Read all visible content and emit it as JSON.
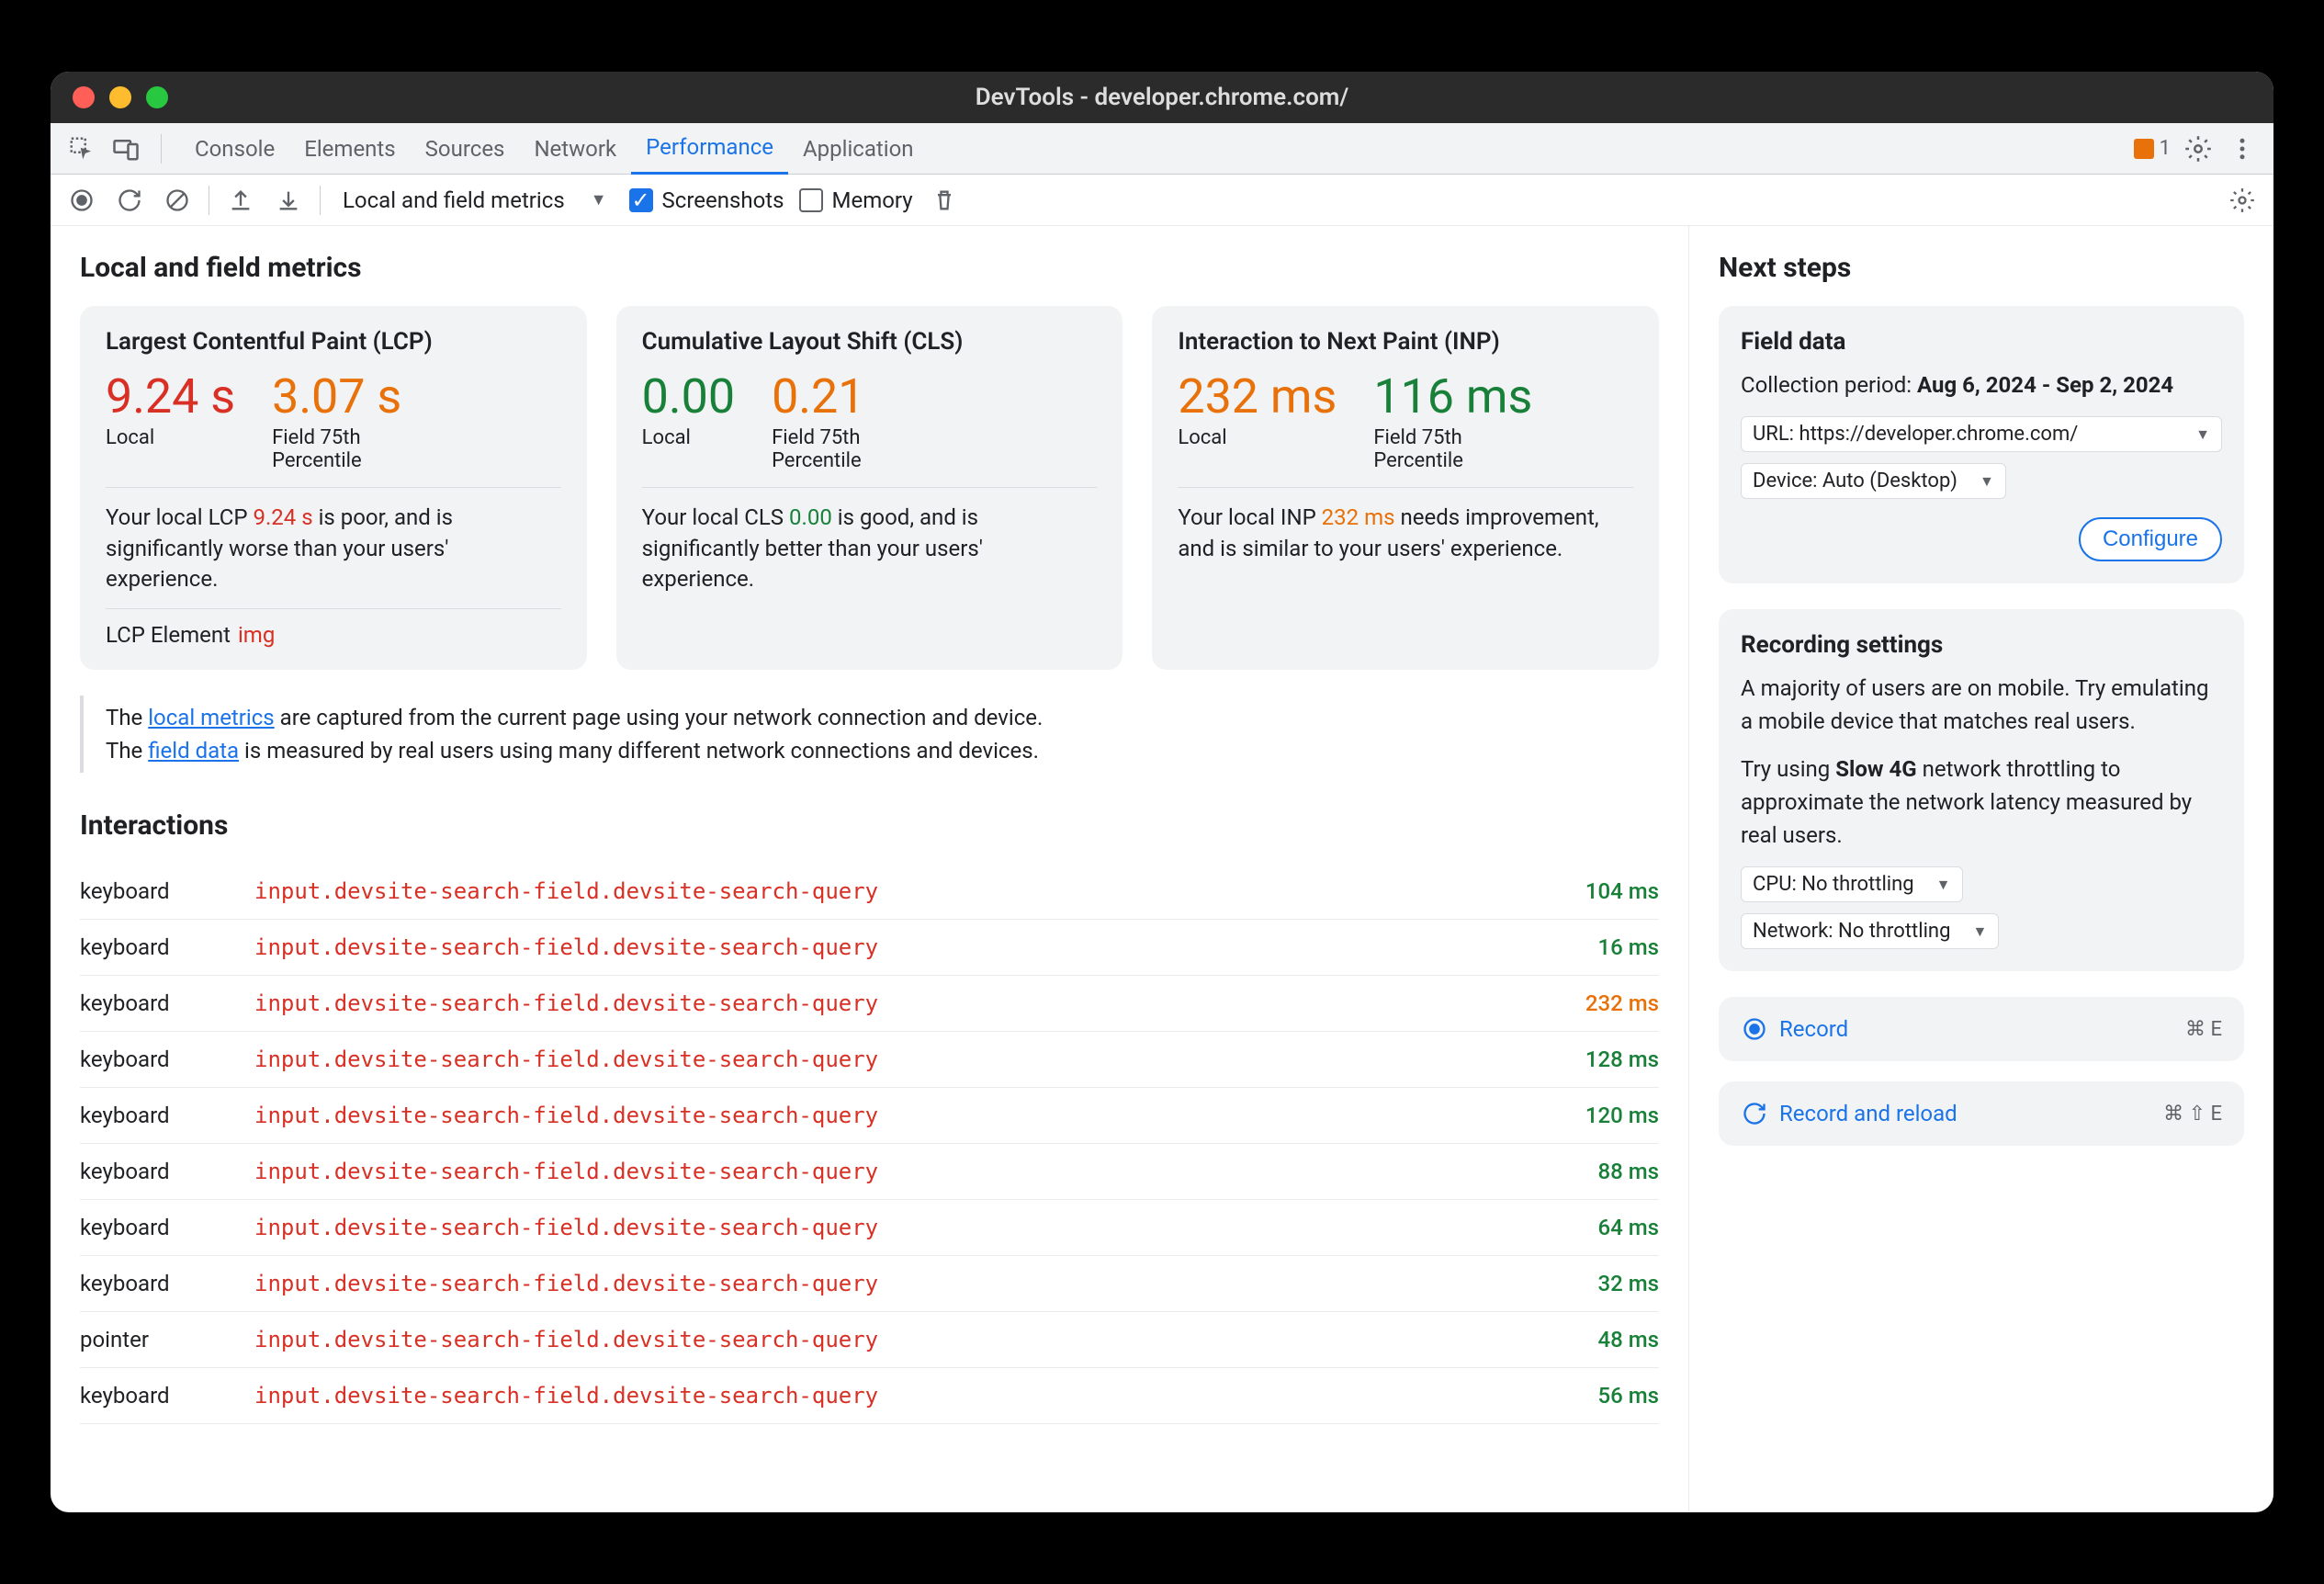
{
  "window": {
    "title": "DevTools - developer.chrome.com/"
  },
  "tabs": [
    "Console",
    "Elements",
    "Sources",
    "Network",
    "Performance",
    "Application"
  ],
  "active_tab_index": 4,
  "issues_count": "1",
  "toolbar": {
    "dropdown": "Local and field metrics",
    "screenshots_label": "Screenshots",
    "screenshots_checked": true,
    "memory_label": "Memory",
    "memory_checked": false
  },
  "main": {
    "heading": "Local and field metrics",
    "cards": [
      {
        "title": "Largest Contentful Paint (LCP)",
        "local_value": "9.24 s",
        "local_color": "#d93025",
        "field_value": "3.07 s",
        "field_color": "#e8710a",
        "local_label": "Local",
        "field_label_line1": "Field 75th",
        "field_label_line2": "Percentile",
        "msg_pre": "Your local LCP ",
        "msg_val": "9.24 s",
        "msg_val_color": "#d93025",
        "msg_post": " is poor, and is significantly worse than your users' experience.",
        "lcp_element_label": "LCP Element",
        "lcp_element_tag": "img"
      },
      {
        "title": "Cumulative Layout Shift (CLS)",
        "local_value": "0.00",
        "local_color": "#188038",
        "field_value": "0.21",
        "field_color": "#e8710a",
        "local_label": "Local",
        "field_label_line1": "Field 75th",
        "field_label_line2": "Percentile",
        "msg_pre": "Your local CLS ",
        "msg_val": "0.00",
        "msg_val_color": "#188038",
        "msg_post": " is good, and is significantly better than your users' experience."
      },
      {
        "title": "Interaction to Next Paint (INP)",
        "local_value": "232 ms",
        "local_color": "#e8710a",
        "field_value": "116 ms",
        "field_color": "#188038",
        "local_label": "Local",
        "field_label_line1": "Field 75th",
        "field_label_line2": "Percentile",
        "msg_pre": "Your local INP ",
        "msg_val": "232 ms",
        "msg_val_color": "#e8710a",
        "msg_post": " needs improvement, and is similar to your users' experience."
      }
    ],
    "note": {
      "line1_pre": "The ",
      "line1_link": "local metrics",
      "line1_post": " are captured from the current page using your network connection and device.",
      "line2_pre": "The ",
      "line2_link": "field data",
      "line2_post": " is measured by real users using many different network connections and devices."
    },
    "interactions_heading": "Interactions",
    "interactions": [
      {
        "type": "keyboard",
        "target": "input.devsite-search-field.devsite-search-query",
        "time": "104 ms",
        "time_color": "#188038"
      },
      {
        "type": "keyboard",
        "target": "input.devsite-search-field.devsite-search-query",
        "time": "16 ms",
        "time_color": "#188038"
      },
      {
        "type": "keyboard",
        "target": "input.devsite-search-field.devsite-search-query",
        "time": "232 ms",
        "time_color": "#e8710a"
      },
      {
        "type": "keyboard",
        "target": "input.devsite-search-field.devsite-search-query",
        "time": "128 ms",
        "time_color": "#188038"
      },
      {
        "type": "keyboard",
        "target": "input.devsite-search-field.devsite-search-query",
        "time": "120 ms",
        "time_color": "#188038"
      },
      {
        "type": "keyboard",
        "target": "input.devsite-search-field.devsite-search-query",
        "time": "88 ms",
        "time_color": "#188038"
      },
      {
        "type": "keyboard",
        "target": "input.devsite-search-field.devsite-search-query",
        "time": "64 ms",
        "time_color": "#188038"
      },
      {
        "type": "keyboard",
        "target": "input.devsite-search-field.devsite-search-query",
        "time": "32 ms",
        "time_color": "#188038"
      },
      {
        "type": "pointer",
        "target": "input.devsite-search-field.devsite-search-query",
        "time": "48 ms",
        "time_color": "#188038"
      },
      {
        "type": "keyboard",
        "target": "input.devsite-search-field.devsite-search-query",
        "time": "56 ms",
        "time_color": "#188038"
      }
    ]
  },
  "side": {
    "heading": "Next steps",
    "field_data": {
      "title": "Field data",
      "period_label": "Collection period: ",
      "period_value": "Aug 6, 2024 - Sep 2, 2024",
      "url_select": "URL: https://developer.chrome.com/",
      "device_select": "Device: Auto (Desktop)",
      "configure_btn": "Configure"
    },
    "recording": {
      "title": "Recording settings",
      "p1": "A majority of users are on mobile. Try emulating a mobile device that matches real users.",
      "p2_pre": "Try using ",
      "p2_bold": "Slow 4G",
      "p2_post": " network throttling to approximate the network latency measured by real users.",
      "cpu_select": "CPU: No throttling",
      "net_select": "Network: No throttling"
    },
    "record": {
      "label": "Record",
      "kbd": "⌘ E"
    },
    "record_reload": {
      "label": "Record and reload",
      "kbd": "⌘ ⇧ E"
    }
  },
  "colors": {
    "red": "#d93025",
    "green": "#188038",
    "orange": "#e8710a",
    "blue": "#1a73e8",
    "panel_bg": "#f1f3f4"
  }
}
